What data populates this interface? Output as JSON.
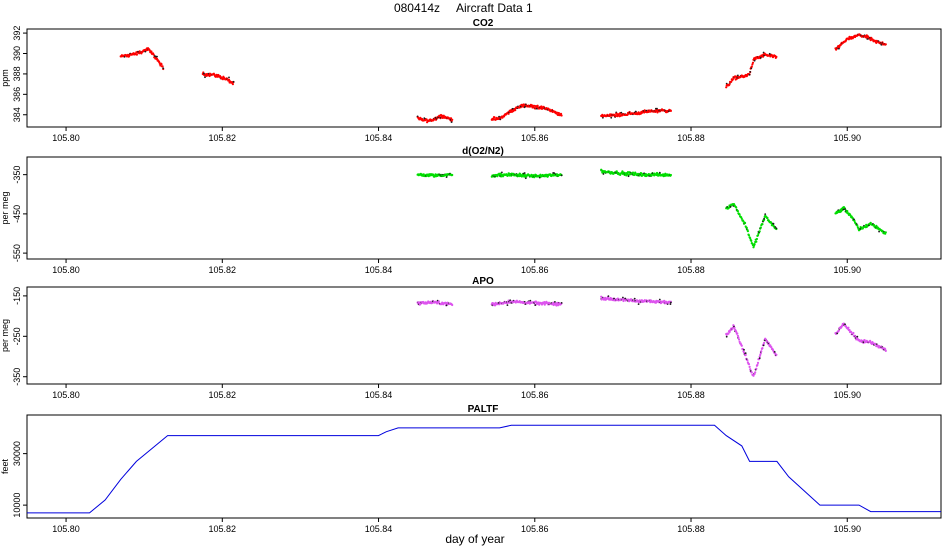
{
  "page": {
    "title": "080414z",
    "subtitle": "Aircraft Data 1",
    "xlabel": "day of year"
  },
  "chart_data": [
    {
      "type": "scatter",
      "title": "CO2",
      "ylabel": "ppm",
      "color": "#ff0000",
      "xlim": [
        105.795,
        105.912
      ],
      "ylim": [
        382.8,
        392.4
      ],
      "yticks": [
        384,
        386,
        388,
        390,
        392
      ],
      "xticks": [
        105.8,
        105.82,
        105.84,
        105.86,
        105.88,
        105.9
      ],
      "xtick_labels": [
        "105.80",
        "105.82",
        "105.84",
        "105.86",
        "105.88",
        "105.90"
      ],
      "segments": [
        {
          "x": [
            105.807,
            105.809,
            105.8105,
            105.8115,
            105.8125
          ],
          "y": [
            389.7,
            390.0,
            390.4,
            389.6,
            388.5
          ]
        },
        {
          "x": [
            105.8175,
            105.819,
            105.8205,
            105.8215
          ],
          "y": [
            388.0,
            387.9,
            387.5,
            387.0
          ]
        },
        {
          "x": [
            105.845,
            105.8465,
            105.8475,
            105.848,
            105.8495
          ],
          "y": [
            383.6,
            383.4,
            383.7,
            383.9,
            383.5
          ]
        },
        {
          "x": [
            105.8545,
            105.8555,
            105.857,
            105.8585,
            105.86,
            105.8615,
            105.8635
          ],
          "y": [
            383.6,
            383.6,
            384.4,
            384.9,
            384.8,
            384.6,
            383.9
          ]
        },
        {
          "x": [
            105.8685,
            105.871,
            105.8735,
            105.8755,
            105.8775
          ],
          "y": [
            383.9,
            384.0,
            384.2,
            384.4,
            384.4
          ]
        },
        {
          "x": [
            105.8845,
            105.8855,
            105.887,
            105.8875,
            105.888,
            105.8895,
            105.891
          ],
          "y": [
            386.7,
            387.6,
            387.8,
            388.0,
            389.4,
            389.9,
            389.6
          ]
        },
        {
          "x": [
            105.8985,
            105.9,
            105.9015,
            105.9025,
            105.9035,
            105.905
          ],
          "y": [
            390.4,
            391.4,
            391.8,
            391.6,
            391.2,
            390.9
          ]
        }
      ]
    },
    {
      "type": "scatter",
      "title": "d(O2/N2)",
      "ylabel": "per meg",
      "color": "#00dd00",
      "xlim": [
        105.795,
        105.912
      ],
      "ylim": [
        -565,
        -305
      ],
      "yticks": [
        -350,
        -450,
        -550
      ],
      "xticks": [
        105.8,
        105.82,
        105.84,
        105.86,
        105.88,
        105.9
      ],
      "xtick_labels": [
        "105.80",
        "105.82",
        "105.84",
        "105.86",
        "105.88",
        "105.90"
      ],
      "segments": [
        {
          "x": [
            105.845,
            105.847,
            105.8495
          ],
          "y": [
            -350,
            -352,
            -350
          ]
        },
        {
          "x": [
            105.8545,
            105.857,
            105.86,
            105.8635
          ],
          "y": [
            -352,
            -350,
            -354,
            -350
          ]
        },
        {
          "x": [
            105.8685,
            105.871,
            105.874,
            105.8775
          ],
          "y": [
            -342,
            -346,
            -350,
            -350
          ]
        },
        {
          "x": [
            105.8845,
            105.8855,
            105.887,
            105.888,
            105.8895,
            105.891
          ],
          "y": [
            -435,
            -425,
            -480,
            -535,
            -455,
            -490
          ]
        },
        {
          "x": [
            105.8985,
            105.8995,
            105.9005,
            105.9015,
            105.903,
            105.905
          ],
          "y": [
            -450,
            -435,
            -455,
            -490,
            -475,
            -500
          ]
        }
      ]
    },
    {
      "type": "scatter",
      "title": "APO",
      "ylabel": "per meg",
      "color": "#dd55ee",
      "xlim": [
        105.795,
        105.912
      ],
      "ylim": [
        -368,
        -128
      ],
      "yticks": [
        -150,
        -250,
        -350
      ],
      "xticks": [
        105.8,
        105.82,
        105.84,
        105.86,
        105.88,
        105.9
      ],
      "xtick_labels": [
        "105.80",
        "105.82",
        "105.84",
        "105.86",
        "105.88",
        "105.90"
      ],
      "segments": [
        {
          "x": [
            105.845,
            105.847,
            105.8495
          ],
          "y": [
            -168,
            -166,
            -170
          ]
        },
        {
          "x": [
            105.8545,
            105.857,
            105.86,
            105.8635
          ],
          "y": [
            -172,
            -164,
            -168,
            -170
          ]
        },
        {
          "x": [
            105.8685,
            105.871,
            105.874,
            105.8775
          ],
          "y": [
            -155,
            -160,
            -163,
            -166
          ]
        },
        {
          "x": [
            105.8845,
            105.8855,
            105.887,
            105.888,
            105.8895,
            105.891
          ],
          "y": [
            -245,
            -225,
            -300,
            -350,
            -255,
            -300
          ]
        },
        {
          "x": [
            105.8985,
            105.8995,
            105.9005,
            105.9015,
            105.903,
            105.905
          ],
          "y": [
            -245,
            -220,
            -240,
            -260,
            -265,
            -285
          ]
        }
      ]
    },
    {
      "type": "line",
      "title": "PALTF",
      "ylabel": "feet",
      "color": "#0000dd",
      "xlim": [
        105.795,
        105.912
      ],
      "ylim": [
        5000,
        45000
      ],
      "yticks": [
        10000,
        30000
      ],
      "xticks": [
        105.8,
        105.82,
        105.84,
        105.86,
        105.88,
        105.9
      ],
      "xtick_labels": [
        "105.80",
        "105.82",
        "105.84",
        "105.86",
        "105.88",
        "105.90"
      ],
      "x": [
        105.795,
        105.803,
        105.805,
        105.807,
        105.809,
        105.811,
        105.813,
        105.84,
        105.841,
        105.8425,
        105.8555,
        105.857,
        105.883,
        105.8845,
        105.8865,
        105.8875,
        105.891,
        105.8925,
        105.8965,
        105.898,
        105.9015,
        105.903,
        105.912
      ],
      "y": [
        7000,
        7000,
        12000,
        20000,
        27000,
        32000,
        37000,
        37000,
        38500,
        40000,
        40000,
        41000,
        41000,
        37000,
        33000,
        27000,
        27000,
        21000,
        10000,
        10000,
        10000,
        7500,
        7500
      ]
    }
  ]
}
